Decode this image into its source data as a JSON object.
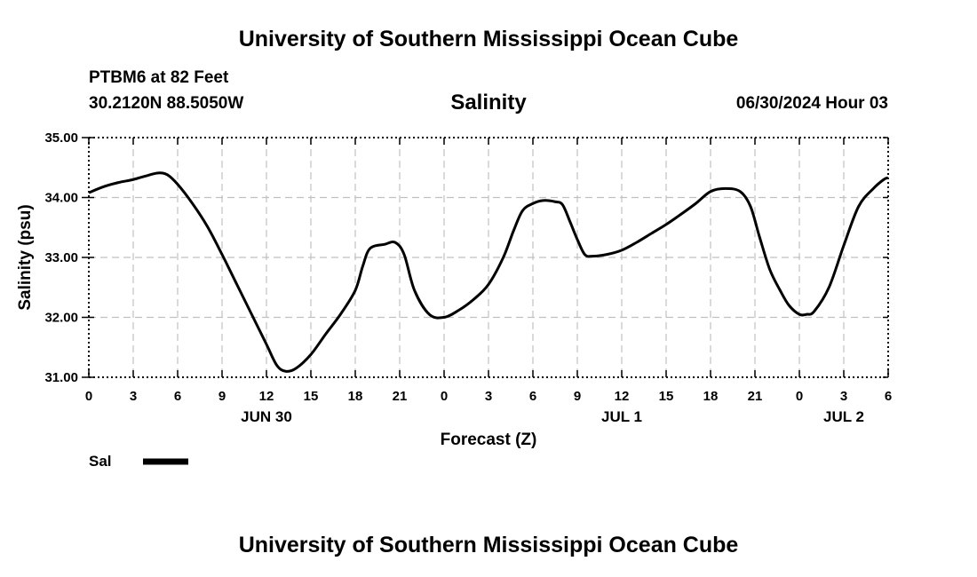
{
  "page": {
    "title_top": "University of Southern Mississippi Ocean Cube",
    "title_bottom": "University of Southern Mississippi Ocean Cube",
    "station": "PTBM6 at 82 Feet",
    "coords": "30.2120N  88.5050W",
    "timestamp": "06/30/2024 Hour 03"
  },
  "chart_data": {
    "type": "line",
    "title": "Salinity",
    "xlabel": "Forecast (Z)",
    "ylabel": "Salinity (psu)",
    "ylim": [
      31.0,
      35.0
    ],
    "xlim": [
      0,
      54
    ],
    "x_units": "forecast hours from 2024-06-30 00Z",
    "x_ticks": [
      0,
      3,
      6,
      9,
      12,
      15,
      18,
      21,
      24,
      27,
      30,
      33,
      36,
      39,
      42,
      45,
      48,
      51,
      54
    ],
    "x_tick_labels": [
      "0",
      "3",
      "6",
      "9",
      "12",
      "15",
      "18",
      "21",
      "0",
      "3",
      "6",
      "9",
      "12",
      "15",
      "18",
      "21",
      "0",
      "3",
      "6"
    ],
    "y_ticks": [
      31,
      32,
      33,
      34,
      35
    ],
    "y_tick_labels": [
      "31.00",
      "32.00",
      "33.00",
      "34.00",
      "35.00"
    ],
    "date_labels": [
      {
        "x": 12,
        "label": "JUN 30"
      },
      {
        "x": 36,
        "label": "JUL 1"
      },
      {
        "x": 51,
        "label": "JUL 2"
      }
    ],
    "grid": true,
    "legend": [
      {
        "name": "Sal",
        "color": "#000000"
      }
    ],
    "series": [
      {
        "name": "Sal",
        "color": "#000000",
        "x": [
          0,
          1,
          2,
          3,
          4,
          4.7,
          5.3,
          6,
          7,
          8,
          9,
          10,
          11,
          12,
          12.7,
          13.3,
          14,
          15,
          16,
          17,
          18,
          18.5,
          19,
          20,
          20.7,
          21.3,
          22,
          23,
          24,
          25,
          26,
          27,
          28,
          28.7,
          29.3,
          30,
          30.7,
          31.5,
          32,
          32.5,
          33,
          33.5,
          34,
          35,
          36,
          37,
          38,
          39,
          40,
          41,
          42,
          43,
          44,
          44.7,
          45.3,
          46,
          46.7,
          47.3,
          48,
          48.5,
          49,
          50,
          51,
          52,
          53,
          53.7,
          54
        ],
        "y": [
          34.08,
          34.18,
          34.25,
          34.3,
          34.37,
          34.41,
          34.38,
          34.22,
          33.9,
          33.52,
          33.05,
          32.55,
          32.05,
          31.55,
          31.2,
          31.1,
          31.15,
          31.38,
          31.72,
          32.05,
          32.45,
          32.85,
          33.15,
          33.22,
          33.25,
          33.05,
          32.45,
          32.05,
          32.0,
          32.12,
          32.3,
          32.55,
          33.0,
          33.45,
          33.78,
          33.9,
          33.95,
          33.93,
          33.88,
          33.6,
          33.3,
          33.05,
          33.02,
          33.05,
          33.12,
          33.25,
          33.4,
          33.55,
          33.72,
          33.9,
          34.1,
          34.15,
          34.1,
          33.85,
          33.35,
          32.8,
          32.45,
          32.2,
          32.05,
          32.05,
          32.1,
          32.5,
          33.2,
          33.85,
          34.15,
          34.3,
          34.33
        ]
      }
    ]
  }
}
